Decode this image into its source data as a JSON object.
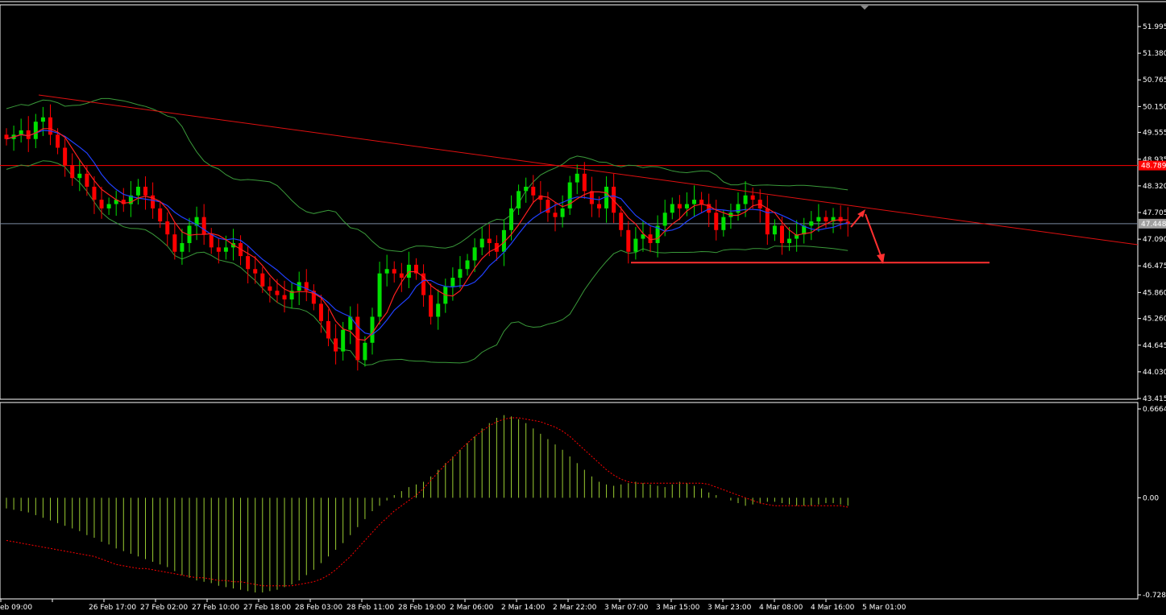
{
  "window": {
    "title": ""
  },
  "colors": {
    "background": "#000000",
    "bull_candle": "#00e000",
    "bear_candle": "#ff0000",
    "bollinger": "#3a9a3a",
    "ma_fast": "#ff2020",
    "ma_slow": "#2040ff",
    "trendline": "#e01010",
    "support_line": "#ff3030",
    "horizontal_level": "#ff0000",
    "current_price_line": "#7a8aa0",
    "histogram": "#9acd32",
    "signal_line": "#ff0000",
    "price_tag_bg": "#ff0000",
    "price_tag_current_bg": "#a0a0a0"
  },
  "chart_data": [
    {
      "type": "candlestick",
      "name": "price_panel",
      "ylim": [
        43.415,
        52.4
      ],
      "price_axis_ticks": [
        "51.995",
        "51.380",
        "50.765",
        "50.150",
        "49.555",
        "48.935",
        "48.320",
        "47.705",
        "47.090",
        "46.475",
        "45.860",
        "45.260",
        "44.645",
        "44.030",
        "43.415"
      ],
      "price_tick_values": [
        51.995,
        51.38,
        50.765,
        50.15,
        49.555,
        48.935,
        48.32,
        47.705,
        47.09,
        46.475,
        45.86,
        45.26,
        44.645,
        44.03,
        43.415
      ],
      "current_price": "47.448",
      "current_price_value": 47.448,
      "level_price": "48.789",
      "level_price_value": 48.789,
      "support_level_value": 46.55,
      "close_series": [
        49.4,
        49.5,
        49.6,
        49.4,
        49.8,
        49.9,
        49.5,
        49.2,
        48.8,
        48.5,
        48.6,
        48.3,
        48.0,
        47.8,
        47.9,
        48.0,
        47.9,
        48.1,
        48.3,
        48.1,
        47.8,
        47.5,
        47.2,
        46.8,
        47.0,
        47.4,
        47.6,
        47.2,
        46.9,
        46.8,
        46.9,
        47.0,
        46.7,
        46.4,
        46.3,
        46.0,
        45.9,
        45.8,
        45.7,
        45.9,
        46.1,
        45.9,
        45.6,
        45.2,
        44.8,
        44.5,
        45.0,
        45.3,
        44.3,
        44.7,
        45.3,
        46.3,
        46.4,
        46.3,
        46.2,
        46.5,
        46.3,
        45.8,
        45.3,
        45.6,
        46.0,
        46.2,
        46.4,
        46.6,
        46.9,
        47.1,
        47.0,
        46.8,
        47.3,
        47.8,
        48.2,
        48.3,
        48.1,
        48.0,
        47.7,
        47.6,
        47.8,
        48.4,
        48.6,
        48.2,
        47.9,
        47.8,
        48.3,
        47.7,
        47.3,
        46.8,
        47.1,
        47.2,
        47.0,
        47.4,
        47.7,
        47.9,
        47.8,
        47.9,
        48.0,
        47.9,
        47.7,
        47.3,
        47.6,
        47.7,
        47.9,
        48.1,
        48.0,
        47.8,
        47.2,
        47.4,
        47.0,
        47.1,
        47.2,
        47.4,
        47.5,
        47.6,
        47.5,
        47.6,
        47.5,
        47.45
      ]
    },
    {
      "type": "histogram",
      "name": "oscillator_panel",
      "ylim": [
        -0.7282,
        0.6664
      ],
      "axis_ticks": [
        "0.6664",
        "0.00",
        "-0.7282"
      ],
      "axis_tick_values": [
        0.6664,
        0.0,
        -0.7282
      ],
      "histogram": [
        -0.08,
        -0.09,
        -0.1,
        -0.11,
        -0.13,
        -0.15,
        -0.17,
        -0.19,
        -0.21,
        -0.23,
        -0.25,
        -0.28,
        -0.3,
        -0.33,
        -0.35,
        -0.38,
        -0.4,
        -0.42,
        -0.44,
        -0.46,
        -0.48,
        -0.5,
        -0.52,
        -0.55,
        -0.58,
        -0.6,
        -0.62,
        -0.63,
        -0.64,
        -0.66,
        -0.67,
        -0.68,
        -0.69,
        -0.7,
        -0.71,
        -0.71,
        -0.7,
        -0.69,
        -0.67,
        -0.65,
        -0.62,
        -0.58,
        -0.54,
        -0.49,
        -0.44,
        -0.39,
        -0.34,
        -0.28,
        -0.22,
        -0.16,
        -0.1,
        -0.06,
        -0.02,
        0.02,
        0.05,
        0.08,
        0.1,
        0.12,
        0.16,
        0.21,
        0.26,
        0.31,
        0.36,
        0.41,
        0.46,
        0.52,
        0.56,
        0.6,
        0.62,
        0.61,
        0.59,
        0.56,
        0.52,
        0.48,
        0.44,
        0.4,
        0.36,
        0.31,
        0.26,
        0.21,
        0.16,
        0.12,
        0.1,
        0.09,
        0.1,
        0.11,
        0.12,
        0.11,
        0.1,
        0.09,
        0.08,
        0.1,
        0.12,
        0.11,
        0.09,
        0.07,
        0.04,
        0.02,
        0.0,
        -0.02,
        -0.04,
        -0.06,
        -0.05,
        -0.04,
        -0.03,
        -0.03,
        -0.04,
        -0.05,
        -0.06,
        -0.06,
        -0.06,
        -0.05,
        -0.04,
        -0.04,
        -0.05,
        -0.06
      ],
      "signal": [
        -0.32,
        -0.33,
        -0.34,
        -0.35,
        -0.36,
        -0.37,
        -0.38,
        -0.39,
        -0.4,
        -0.41,
        -0.42,
        -0.43,
        -0.44,
        -0.46,
        -0.48,
        -0.5,
        -0.51,
        -0.52,
        -0.53,
        -0.53,
        -0.54,
        -0.55,
        -0.56,
        -0.57,
        -0.58,
        -0.59,
        -0.6,
        -0.6,
        -0.61,
        -0.62,
        -0.62,
        -0.63,
        -0.63,
        -0.64,
        -0.65,
        -0.66,
        -0.66,
        -0.66,
        -0.66,
        -0.66,
        -0.65,
        -0.64,
        -0.63,
        -0.61,
        -0.58,
        -0.54,
        -0.49,
        -0.44,
        -0.38,
        -0.32,
        -0.26,
        -0.2,
        -0.15,
        -0.1,
        -0.06,
        -0.02,
        0.02,
        0.07,
        0.13,
        0.19,
        0.25,
        0.3,
        0.36,
        0.41,
        0.46,
        0.5,
        0.54,
        0.57,
        0.59,
        0.6,
        0.6,
        0.59,
        0.58,
        0.57,
        0.55,
        0.53,
        0.5,
        0.46,
        0.41,
        0.36,
        0.31,
        0.26,
        0.21,
        0.17,
        0.14,
        0.12,
        0.11,
        0.11,
        0.11,
        0.11,
        0.11,
        0.11,
        0.11,
        0.11,
        0.11,
        0.11,
        0.1,
        0.08,
        0.06,
        0.04,
        0.02,
        0.0,
        -0.02,
        -0.04,
        -0.05,
        -0.06,
        -0.06,
        -0.06,
        -0.06,
        -0.06,
        -0.06,
        -0.06,
        -0.06,
        -0.06,
        -0.06,
        -0.07
      ]
    }
  ],
  "time_axis": {
    "labels": [
      "eb 09:00",
      "26 Feb 17:00",
      "27 Feb 02:00",
      "27 Feb 10:00",
      "27 Feb 18:00",
      "28 Feb 03:00",
      "28 Feb 11:00",
      "28 Feb 19:00",
      "2 Mar 06:00",
      "2 Mar 14:00",
      "2 Mar 22:00",
      "3 Mar 07:00",
      "3 Mar 15:00",
      "3 Mar 23:00",
      "4 Mar 08:00",
      "4 Mar 16:00",
      "5 Mar 01:00"
    ]
  }
}
